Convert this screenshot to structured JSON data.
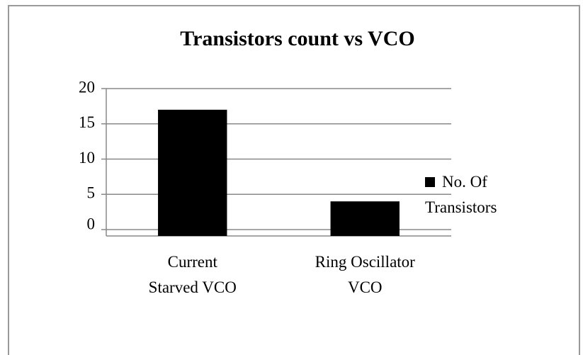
{
  "chart_data": {
    "type": "bar",
    "title": "Transistors count vs VCO",
    "categories": [
      "Current Starved VCO",
      "Ring Oscillator VCO"
    ],
    "series": [
      {
        "name": "No. Of Transistors",
        "color": "#000000",
        "values": [
          17,
          4
        ]
      }
    ],
    "ylim": [
      0,
      20
    ],
    "yticks": [
      0,
      5,
      10,
      15,
      20
    ],
    "grid": true,
    "legend": "right"
  }
}
